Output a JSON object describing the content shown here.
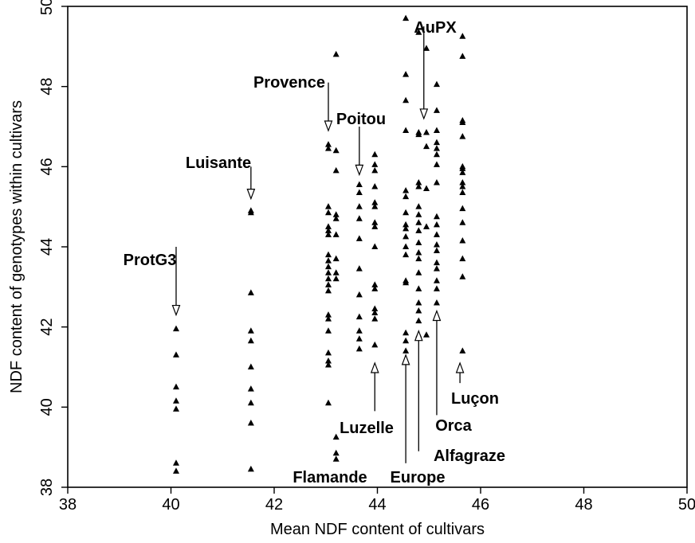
{
  "chart_data": {
    "type": "scatter",
    "title": "",
    "xlabel": "Mean NDF content of cultivars",
    "ylabel": "NDF content of genotypes within cultivars",
    "xlim": [
      38,
      50
    ],
    "ylim": [
      38,
      50
    ],
    "xticks": [
      38,
      40,
      42,
      44,
      46,
      48,
      50
    ],
    "yticks": [
      38,
      40,
      42,
      44,
      46,
      48,
      50
    ],
    "marker": "filled-triangle",
    "grid": false,
    "series": [
      {
        "x": 40.1,
        "y": [
          41.95,
          41.3,
          40.5,
          40.15,
          39.95,
          38.6,
          38.4
        ]
      },
      {
        "x": 41.55,
        "y": [
          44.9,
          44.85,
          42.85,
          41.9,
          41.65,
          41.0,
          40.45,
          40.1,
          39.6,
          38.45
        ]
      },
      {
        "x": 43.05,
        "y": [
          46.55,
          46.45,
          45.0,
          44.85,
          44.5,
          44.4,
          44.3,
          43.8,
          43.65,
          43.5,
          43.35,
          43.2,
          43.05,
          42.9,
          42.3,
          42.2,
          41.9,
          41.35,
          41.15,
          41.05,
          40.1
        ]
      },
      {
        "x": 43.2,
        "y": [
          48.8,
          46.4,
          45.9,
          44.8,
          44.7,
          44.3,
          43.7,
          43.35,
          43.2,
          39.25,
          38.85,
          38.7
        ]
      },
      {
        "x": 43.65,
        "y": [
          45.55,
          45.35,
          45.0,
          44.7,
          44.2,
          43.45,
          42.8,
          42.25,
          41.9,
          41.7,
          41.45
        ]
      },
      {
        "x": 43.95,
        "y": [
          46.3,
          46.05,
          45.9,
          45.5,
          45.1,
          45.0,
          44.6,
          44.5,
          44.0,
          43.05,
          42.95,
          42.45,
          42.35,
          42.2,
          41.55
        ]
      },
      {
        "x": 44.55,
        "y": [
          49.7,
          48.3,
          47.65,
          46.9,
          45.4,
          45.25,
          44.85,
          44.55,
          44.45,
          44.25,
          44.0,
          43.8,
          43.15,
          43.1,
          41.85,
          41.65,
          41.4
        ]
      },
      {
        "x": 44.8,
        "y": [
          49.35,
          46.85,
          46.8,
          45.6,
          45.5,
          45.0,
          44.8,
          44.6,
          44.4,
          44.1,
          43.85,
          43.7,
          43.35,
          42.95,
          42.6,
          42.4,
          42.15,
          41.8
        ]
      },
      {
        "x": 44.95,
        "y": [
          48.95,
          46.85,
          46.5,
          45.45,
          44.5,
          41.8
        ]
      },
      {
        "x": 45.15,
        "y": [
          48.05,
          47.4,
          46.9,
          46.6,
          46.45,
          46.3,
          46.05,
          45.6,
          44.75,
          44.55,
          44.3,
          44.05,
          43.9,
          43.6,
          43.45,
          43.15,
          42.95,
          42.6
        ]
      },
      {
        "x": 45.65,
        "y": [
          49.25,
          48.75,
          47.15,
          47.1,
          46.75,
          46.0,
          45.95,
          45.85,
          45.6,
          45.5,
          45.35,
          44.95,
          44.6,
          44.15,
          43.7,
          43.25,
          41.4
        ]
      }
    ],
    "annotations": [
      {
        "text": "ProtG3",
        "arrow_x": 40.1,
        "arrow_from_y": 44.0,
        "arrow_to_y": 42.3,
        "direction": "down"
      },
      {
        "text": "Luisante",
        "arrow_x": 41.55,
        "arrow_from_y": 46.0,
        "arrow_to_y": 45.2,
        "direction": "down"
      },
      {
        "text": "Provence",
        "arrow_x": 43.05,
        "arrow_from_y": 48.1,
        "arrow_to_y": 46.9,
        "direction": "down"
      },
      {
        "text": "Poitou",
        "arrow_x": 43.65,
        "arrow_from_y": 47.0,
        "arrow_to_y": 45.8,
        "direction": "down"
      },
      {
        "text": "AuPX",
        "arrow_x": 44.9,
        "arrow_from_y": 49.5,
        "arrow_to_y": 47.2,
        "direction": "down"
      },
      {
        "text": "Luzelle",
        "arrow_x": 43.95,
        "arrow_from_y": 39.9,
        "arrow_to_y": 41.1,
        "direction": "up"
      },
      {
        "text": "Flamande",
        "arrow_x": null,
        "arrow_from_y": null,
        "arrow_to_y": null,
        "direction": "none"
      },
      {
        "text": "Europe",
        "arrow_x": 44.55,
        "arrow_from_y": 38.6,
        "arrow_to_y": 41.3,
        "direction": "up"
      },
      {
        "text": "Alfagraze",
        "arrow_x": 44.8,
        "arrow_from_y": 38.9,
        "arrow_to_y": 41.9,
        "direction": "up"
      },
      {
        "text": "Orca",
        "arrow_x": 45.15,
        "arrow_from_y": 39.8,
        "arrow_to_y": 42.4,
        "direction": "up"
      },
      {
        "text": "Luçon",
        "arrow_x": 45.6,
        "arrow_from_y": 40.6,
        "arrow_to_y": 41.1,
        "direction": "up"
      }
    ]
  }
}
